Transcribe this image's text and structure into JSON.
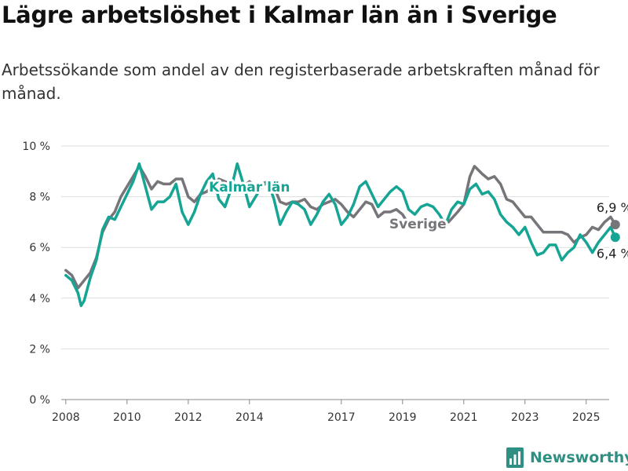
{
  "header": {
    "title": "Lägre arbetslöshet i Kalmar län än i Sverige",
    "subtitle": "Arbetssökande som andel av den registerbaserade arbetskraften månad för månad."
  },
  "brand": {
    "name": "Newsworthy"
  },
  "chart_data": {
    "type": "line",
    "title": "Lägre arbetslöshet i Kalmar län än i Sverige",
    "subtitle": "Arbetssökande som andel av den registerbaserade arbetskraften månad för månad.",
    "xlabel": "",
    "ylabel": "",
    "xlim": [
      2007.85,
      2025.75
    ],
    "ylim": [
      0,
      10
    ],
    "y_ticks": [
      0,
      2,
      4,
      6,
      8,
      10
    ],
    "y_tick_labels": [
      "0 %",
      "2 %",
      "4 %",
      "6 %",
      "8 %",
      "10 %"
    ],
    "x_ticks": [
      2008,
      2010,
      2012,
      2014,
      2017,
      2019,
      2021,
      2023,
      2025
    ],
    "x_tick_labels": [
      "2008",
      "2010",
      "2012",
      "2014",
      "2017",
      "2019",
      "2021",
      "2023",
      "2025"
    ],
    "grid": true,
    "legend": "direct labels on lines",
    "series": [
      {
        "name": "Sverige",
        "color": "#77747a",
        "end_label": "6,9 %",
        "points": [
          [
            2008.0,
            5.1
          ],
          [
            2008.2,
            4.9
          ],
          [
            2008.4,
            4.4
          ],
          [
            2008.6,
            4.7
          ],
          [
            2008.8,
            5.0
          ],
          [
            2009.0,
            5.6
          ],
          [
            2009.2,
            6.6
          ],
          [
            2009.4,
            7.1
          ],
          [
            2009.6,
            7.4
          ],
          [
            2009.8,
            8.0
          ],
          [
            2010.0,
            8.4
          ],
          [
            2010.2,
            8.8
          ],
          [
            2010.4,
            9.2
          ],
          [
            2010.6,
            8.8
          ],
          [
            2010.8,
            8.3
          ],
          [
            2011.0,
            8.6
          ],
          [
            2011.2,
            8.5
          ],
          [
            2011.4,
            8.5
          ],
          [
            2011.6,
            8.7
          ],
          [
            2011.8,
            8.7
          ],
          [
            2012.0,
            8.0
          ],
          [
            2012.2,
            7.8
          ],
          [
            2012.4,
            8.1
          ],
          [
            2012.6,
            8.2
          ],
          [
            2012.8,
            8.4
          ],
          [
            2013.0,
            8.7
          ],
          [
            2013.2,
            8.6
          ],
          [
            2013.4,
            8.5
          ],
          [
            2013.6,
            8.3
          ],
          [
            2013.8,
            8.4
          ],
          [
            2014.0,
            8.6
          ],
          [
            2014.2,
            8.4
          ],
          [
            2014.4,
            8.5
          ],
          [
            2014.6,
            8.6
          ],
          [
            2014.8,
            8.4
          ],
          [
            2015.0,
            7.8
          ],
          [
            2015.2,
            7.7
          ],
          [
            2015.4,
            7.8
          ],
          [
            2015.6,
            7.8
          ],
          [
            2015.8,
            7.9
          ],
          [
            2016.0,
            7.6
          ],
          [
            2016.2,
            7.5
          ],
          [
            2016.4,
            7.7
          ],
          [
            2016.6,
            7.8
          ],
          [
            2016.8,
            7.9
          ],
          [
            2017.0,
            7.7
          ],
          [
            2017.2,
            7.4
          ],
          [
            2017.4,
            7.2
          ],
          [
            2017.6,
            7.5
          ],
          [
            2017.8,
            7.8
          ],
          [
            2018.0,
            7.7
          ],
          [
            2018.2,
            7.2
          ],
          [
            2018.4,
            7.4
          ],
          [
            2018.6,
            7.4
          ],
          [
            2018.8,
            7.5
          ],
          [
            2019.0,
            7.3
          ],
          [
            2019.2,
            6.9
          ]
        ],
        "segment2": [
          [
            2020.5,
            7.0
          ],
          [
            2020.8,
            7.4
          ],
          [
            2021.0,
            7.7
          ],
          [
            2021.2,
            8.8
          ],
          [
            2021.35,
            9.2
          ],
          [
            2021.6,
            8.9
          ],
          [
            2021.8,
            8.7
          ],
          [
            2022.0,
            8.8
          ],
          [
            2022.2,
            8.5
          ],
          [
            2022.4,
            7.9
          ],
          [
            2022.6,
            7.8
          ],
          [
            2022.8,
            7.5
          ],
          [
            2023.0,
            7.2
          ],
          [
            2023.2,
            7.2
          ],
          [
            2023.4,
            6.9
          ],
          [
            2023.6,
            6.6
          ],
          [
            2023.8,
            6.6
          ],
          [
            2024.0,
            6.6
          ],
          [
            2024.2,
            6.6
          ],
          [
            2024.4,
            6.5
          ],
          [
            2024.6,
            6.2
          ],
          [
            2024.8,
            6.4
          ],
          [
            2025.0,
            6.5
          ],
          [
            2025.2,
            6.8
          ],
          [
            2025.4,
            6.7
          ],
          [
            2025.6,
            7.0
          ],
          [
            2025.8,
            7.2
          ],
          [
            2025.95,
            6.9
          ]
        ]
      },
      {
        "name": "Kalmar län",
        "color": "#16a595",
        "end_label": "6,4 %",
        "points": [
          [
            2008.0,
            4.9
          ],
          [
            2008.2,
            4.7
          ],
          [
            2008.4,
            4.2
          ],
          [
            2008.5,
            3.7
          ],
          [
            2008.6,
            3.9
          ],
          [
            2008.8,
            4.8
          ],
          [
            2009.0,
            5.5
          ],
          [
            2009.2,
            6.7
          ],
          [
            2009.4,
            7.2
          ],
          [
            2009.6,
            7.1
          ],
          [
            2009.8,
            7.6
          ],
          [
            2010.0,
            8.1
          ],
          [
            2010.2,
            8.6
          ],
          [
            2010.4,
            9.3
          ],
          [
            2010.6,
            8.4
          ],
          [
            2010.8,
            7.5
          ],
          [
            2011.0,
            7.8
          ],
          [
            2011.2,
            7.8
          ],
          [
            2011.4,
            8.0
          ],
          [
            2011.6,
            8.5
          ],
          [
            2011.8,
            7.4
          ],
          [
            2012.0,
            6.9
          ],
          [
            2012.2,
            7.4
          ],
          [
            2012.4,
            8.1
          ],
          [
            2012.6,
            8.6
          ],
          [
            2012.8,
            8.9
          ],
          [
            2013.0,
            7.9
          ],
          [
            2013.2,
            7.6
          ],
          [
            2013.4,
            8.3
          ],
          [
            2013.6,
            9.3
          ],
          [
            2013.8,
            8.5
          ],
          [
            2014.0,
            7.6
          ],
          [
            2014.2,
            8.0
          ],
          [
            2014.4,
            8.4
          ],
          [
            2014.6,
            8.6
          ],
          [
            2014.8,
            7.9
          ],
          [
            2015.0,
            6.9
          ],
          [
            2015.2,
            7.4
          ],
          [
            2015.4,
            7.8
          ],
          [
            2015.6,
            7.7
          ],
          [
            2015.8,
            7.5
          ],
          [
            2016.0,
            6.9
          ],
          [
            2016.2,
            7.3
          ],
          [
            2016.4,
            7.8
          ],
          [
            2016.6,
            8.1
          ],
          [
            2016.8,
            7.7
          ],
          [
            2017.0,
            6.9
          ],
          [
            2017.2,
            7.2
          ],
          [
            2017.4,
            7.7
          ],
          [
            2017.6,
            8.4
          ],
          [
            2017.8,
            8.6
          ],
          [
            2018.0,
            8.1
          ],
          [
            2018.2,
            7.6
          ],
          [
            2018.4,
            7.9
          ],
          [
            2018.6,
            8.2
          ],
          [
            2018.8,
            8.4
          ],
          [
            2019.0,
            8.2
          ],
          [
            2019.2,
            7.5
          ],
          [
            2019.4,
            7.3
          ],
          [
            2019.6,
            7.6
          ],
          [
            2019.8,
            7.7
          ],
          [
            2020.0,
            7.6
          ],
          [
            2020.2,
            7.3
          ],
          [
            2020.4,
            6.9
          ],
          [
            2020.6,
            7.5
          ],
          [
            2020.8,
            7.8
          ],
          [
            2021.0,
            7.7
          ],
          [
            2021.2,
            8.3
          ],
          [
            2021.4,
            8.5
          ],
          [
            2021.6,
            8.1
          ],
          [
            2021.8,
            8.2
          ],
          [
            2022.0,
            7.9
          ],
          [
            2022.2,
            7.3
          ],
          [
            2022.4,
            7.0
          ],
          [
            2022.6,
            6.8
          ],
          [
            2022.8,
            6.5
          ],
          [
            2023.0,
            6.8
          ],
          [
            2023.2,
            6.2
          ],
          [
            2023.4,
            5.7
          ],
          [
            2023.6,
            5.8
          ],
          [
            2023.8,
            6.1
          ],
          [
            2024.0,
            6.1
          ],
          [
            2024.2,
            5.5
          ],
          [
            2024.4,
            5.8
          ],
          [
            2024.6,
            6.0
          ],
          [
            2024.8,
            6.5
          ],
          [
            2025.0,
            6.2
          ],
          [
            2025.2,
            5.8
          ],
          [
            2025.4,
            6.2
          ],
          [
            2025.6,
            6.5
          ],
          [
            2025.8,
            6.8
          ],
          [
            2025.95,
            6.4
          ]
        ]
      }
    ]
  }
}
